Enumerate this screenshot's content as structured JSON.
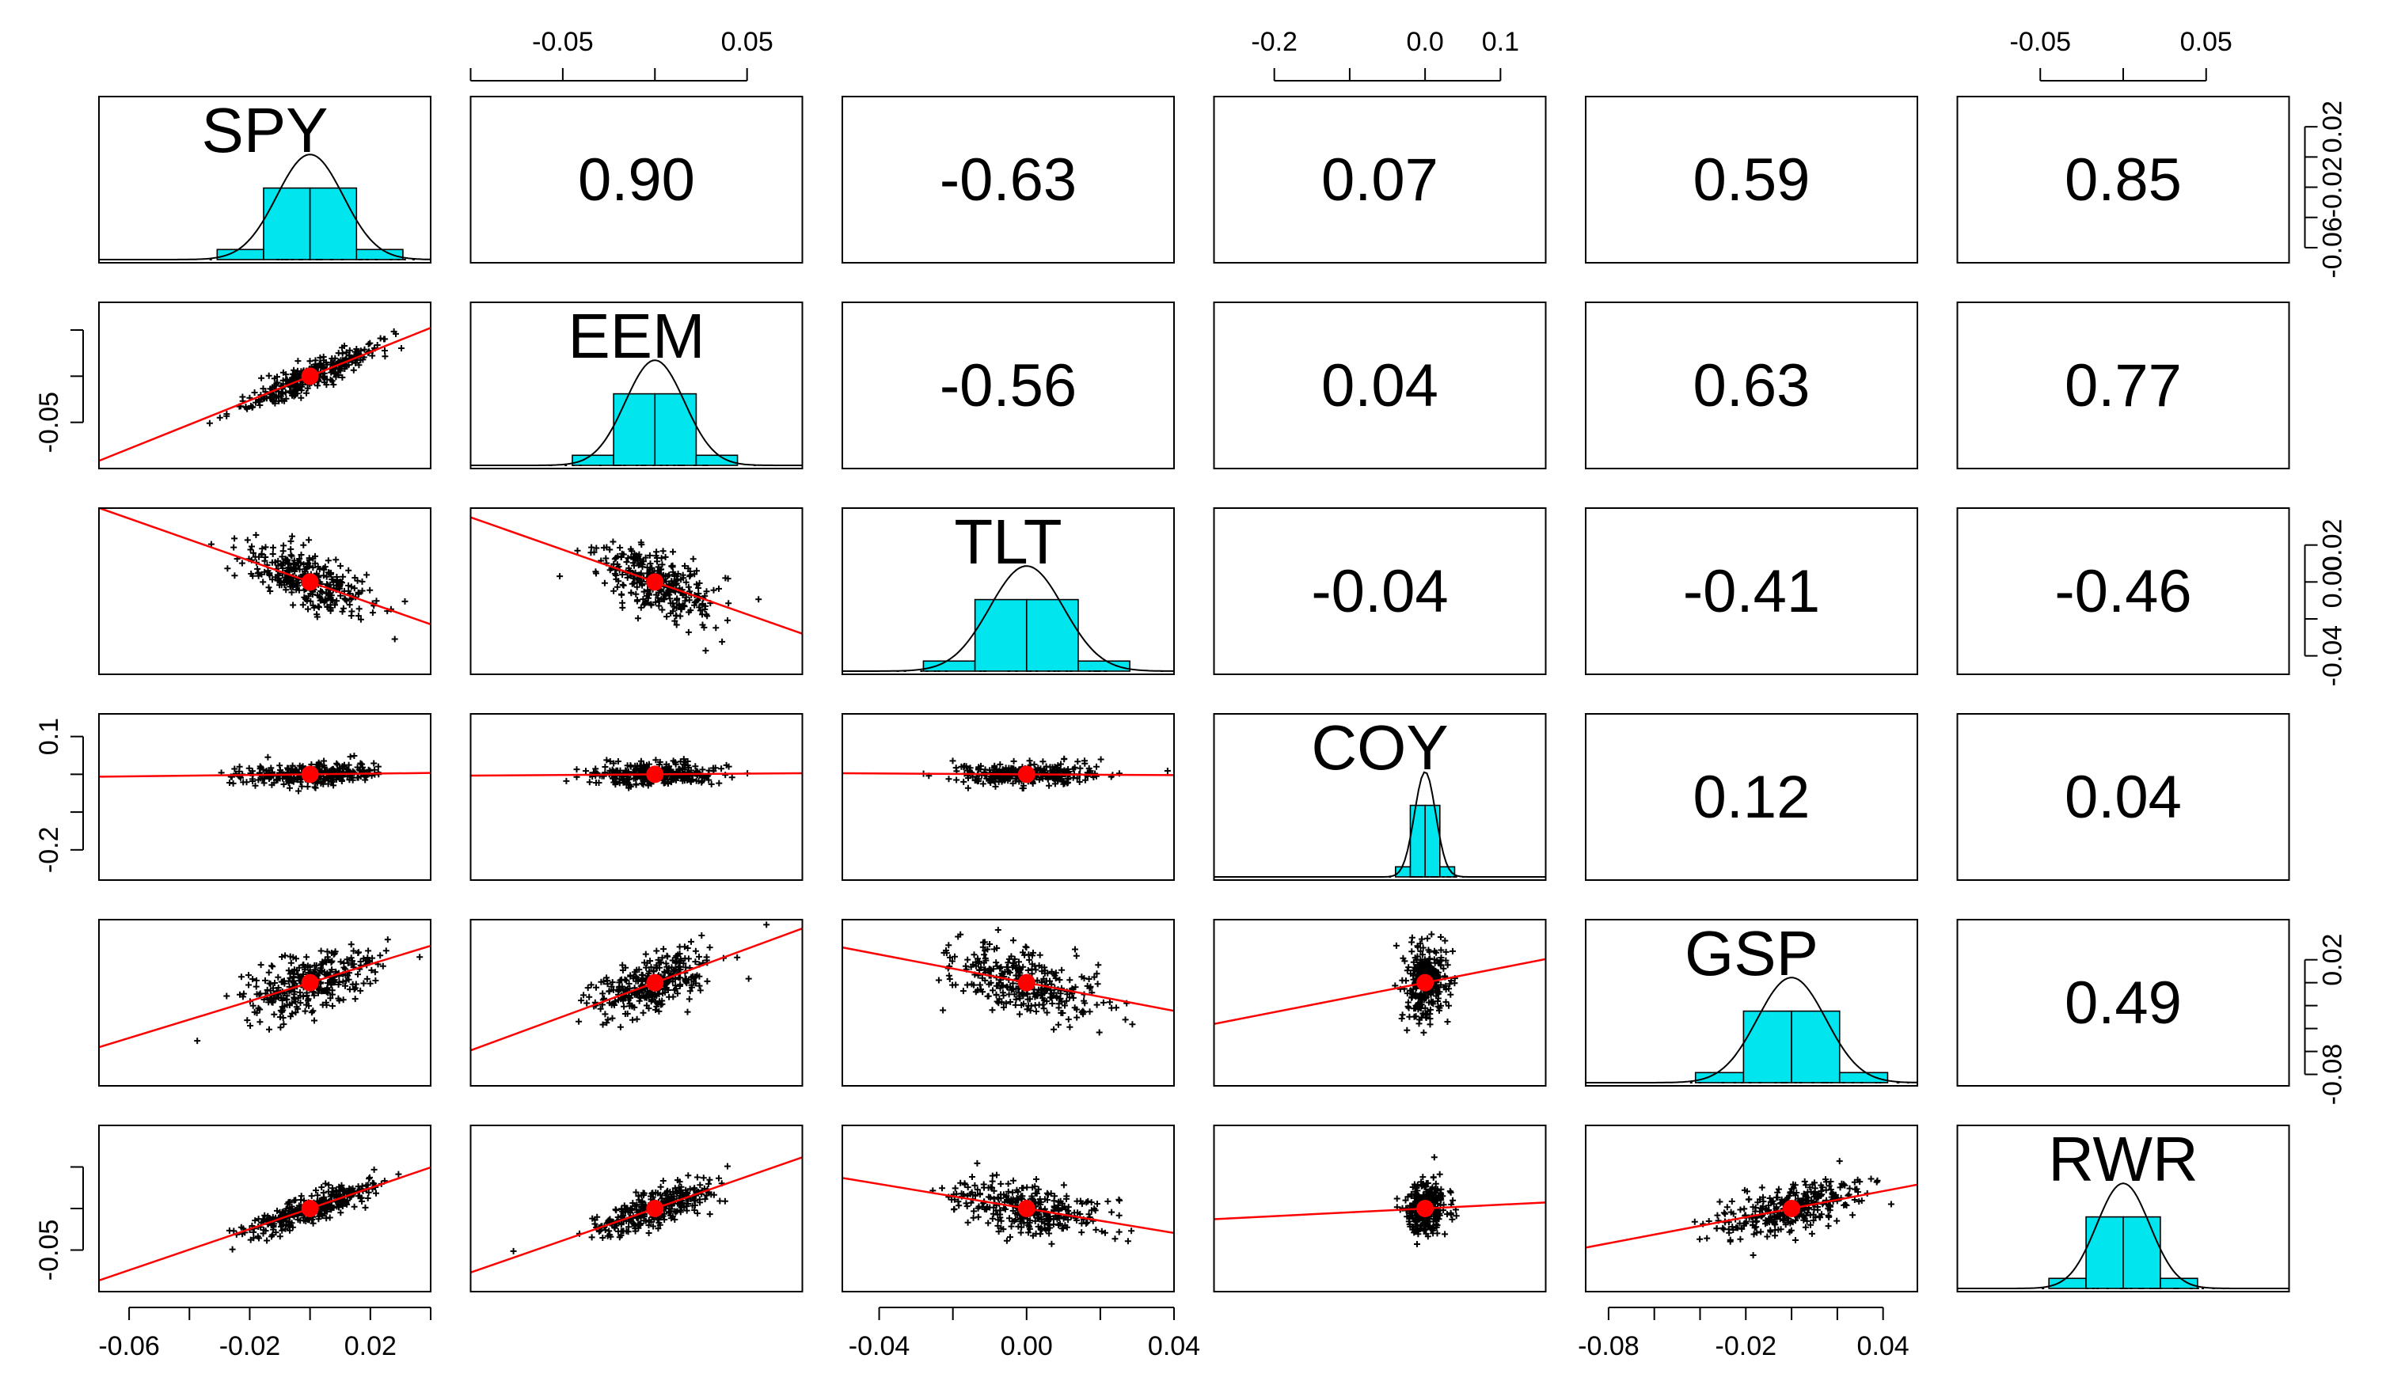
{
  "chart_data": {
    "type": "scatter",
    "title": "",
    "variables": [
      "SPY",
      "EEM",
      "TLT",
      "COY",
      "GSP",
      "RWR"
    ],
    "correlation_labels": [
      [
        "",
        "0.90",
        "-0.63",
        "0.07",
        "0.59",
        "0.85"
      ],
      [
        "",
        "",
        "-0.56",
        "0.04",
        "0.63",
        "0.77"
      ],
      [
        "",
        "",
        "",
        "-0.04",
        "-0.41",
        "-0.46"
      ],
      [
        "",
        "",
        "",
        "",
        "0.12",
        "0.04"
      ],
      [
        "",
        "",
        "",
        "",
        "",
        "0.49"
      ],
      [
        "",
        "",
        "",
        "",
        "",
        ""
      ]
    ],
    "ranges": {
      "SPY": [
        -0.07,
        0.04
      ],
      "EEM": [
        -0.1,
        0.08
      ],
      "TLT": [
        -0.05,
        0.04
      ],
      "COY": [
        -0.28,
        0.16
      ],
      "GSP": [
        -0.09,
        0.055
      ],
      "RWR": [
        -0.1,
        0.1
      ]
    },
    "sd": {
      "SPY": 0.011,
      "EEM": 0.016,
      "TLT": 0.01,
      "COY": 0.014,
      "GSP": 0.015,
      "RWR": 0.016
    },
    "axes": {
      "bottom": [
        {
          "column": 0,
          "ticks": [
            -0.06,
            -0.04,
            -0.02,
            0,
            0.02,
            0.04
          ],
          "labels": [
            "-0.06",
            "",
            "-0.02",
            "",
            "0.02",
            ""
          ]
        },
        {
          "column": 2,
          "ticks": [
            -0.04,
            -0.02,
            0,
            0.02,
            0.04
          ],
          "labels": [
            "-0.04",
            "",
            "0.00",
            "",
            "0.04"
          ]
        },
        {
          "column": 4,
          "ticks": [
            -0.08,
            -0.06,
            -0.04,
            -0.02,
            0,
            0.02,
            0.04
          ],
          "labels": [
            "-0.08",
            "",
            "",
            "-0.02",
            "",
            "",
            "0.04"
          ]
        }
      ],
      "top": [
        {
          "column": 1,
          "ticks": [
            -0.1,
            -0.05,
            0,
            0.05
          ],
          "labels": [
            "",
            "-0.05",
            "",
            "0.05"
          ]
        },
        {
          "column": 3,
          "ticks": [
            -0.2,
            -0.1,
            0,
            0.1
          ],
          "labels": [
            "-0.2",
            "",
            "0.0",
            "0.1"
          ]
        },
        {
          "column": 5,
          "ticks": [
            -0.05,
            0,
            0.05
          ],
          "labels": [
            "-0.05",
            "",
            "0.05"
          ]
        }
      ],
      "left": [
        {
          "row": 1,
          "ticks": [
            -0.05,
            0,
            0.05
          ],
          "labels": [
            "-0.05",
            "",
            ""
          ]
        },
        {
          "row": 3,
          "ticks": [
            -0.2,
            -0.1,
            0,
            0.1
          ],
          "labels": [
            "-0.2",
            "",
            "",
            "0.1"
          ]
        },
        {
          "row": 5,
          "ticks": [
            -0.05,
            0,
            0.05
          ],
          "labels": [
            "-0.05",
            "",
            ""
          ]
        }
      ],
      "right": [
        {
          "row": 0,
          "ticks": [
            -0.06,
            -0.04,
            -0.02,
            0,
            0.02
          ],
          "labels": [
            "-0.06",
            "",
            "-0.02",
            "",
            "0.02"
          ]
        },
        {
          "row": 2,
          "ticks": [
            -0.04,
            -0.02,
            0,
            0.02
          ],
          "labels": [
            "-0.04",
            "",
            "0.00",
            "0.02"
          ]
        },
        {
          "row": 4,
          "ticks": [
            -0.08,
            -0.06,
            -0.04,
            -0.02,
            0,
            0.02
          ],
          "labels": [
            "-0.08",
            "",
            "",
            "",
            "",
            "0.02"
          ]
        }
      ]
    },
    "colors": {
      "histogram": "#00e5ee",
      "fit_line": "#ff0000",
      "centroid": "#ff0000",
      "points": "#000000"
    }
  }
}
